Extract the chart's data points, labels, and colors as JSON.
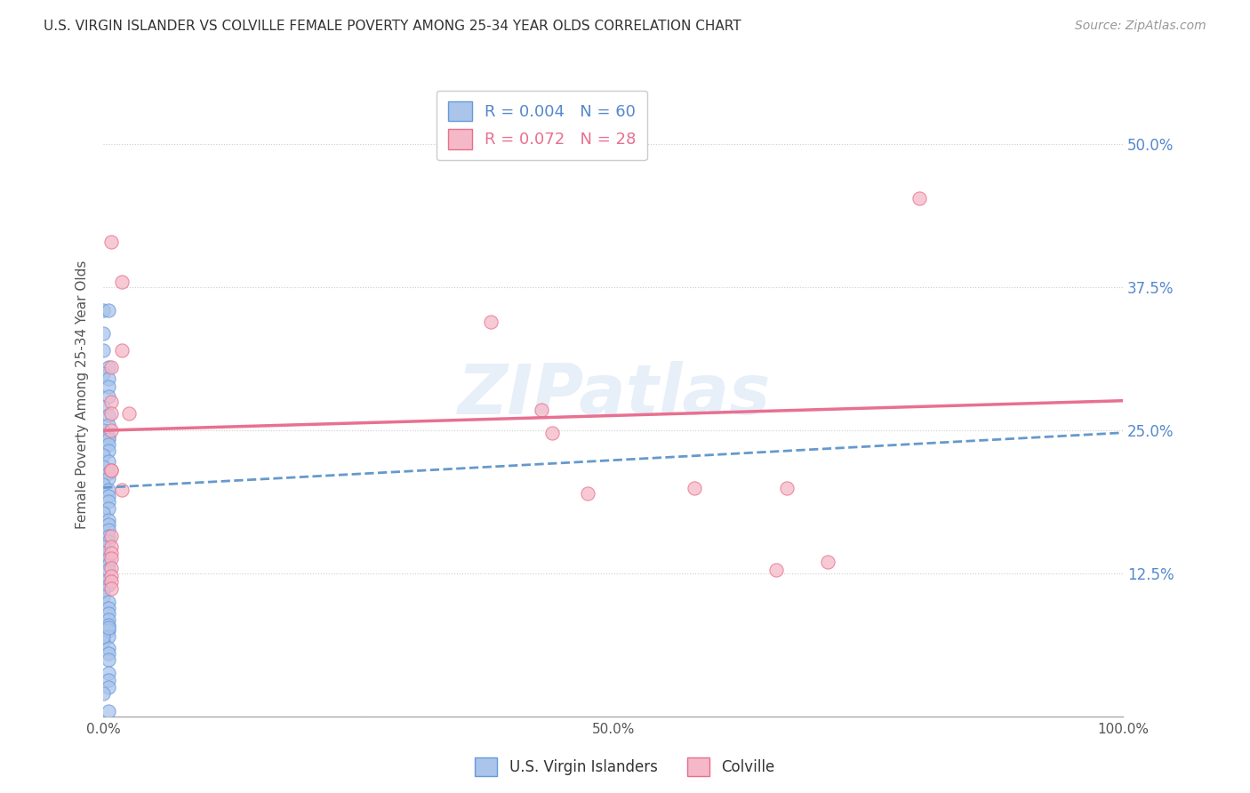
{
  "title": "U.S. VIRGIN ISLANDER VS COLVILLE FEMALE POVERTY AMONG 25-34 YEAR OLDS CORRELATION CHART",
  "source": "Source: ZipAtlas.com",
  "ylabel": "Female Poverty Among 25-34 Year Olds",
  "xlim": [
    0,
    1.0
  ],
  "ylim": [
    0,
    0.5625
  ],
  "xticks": [
    0.0,
    0.1,
    0.2,
    0.3,
    0.4,
    0.5,
    0.6,
    0.7,
    0.8,
    0.9,
    1.0
  ],
  "ytick_positions": [
    0.0,
    0.125,
    0.25,
    0.375,
    0.5
  ],
  "ytick_labels_right": [
    "",
    "12.5%",
    "25.0%",
    "37.5%",
    "50.0%"
  ],
  "blue_R": 0.004,
  "blue_N": 60,
  "pink_R": 0.072,
  "pink_N": 28,
  "blue_color": "#aac4ea",
  "pink_color": "#f5b8c8",
  "blue_edge_color": "#6699dd",
  "pink_edge_color": "#e8708a",
  "blue_line_color": "#6699cc",
  "pink_line_color": "#e87090",
  "watermark": "ZIPatlas",
  "background_color": "#ffffff",
  "grid_color": "#cccccc",
  "blue_scatter_x": [
    0.0,
    0.005,
    0.0,
    0.0,
    0.005,
    0.0,
    0.005,
    0.005,
    0.005,
    0.0,
    0.005,
    0.005,
    0.0,
    0.005,
    0.005,
    0.005,
    0.005,
    0.0,
    0.005,
    0.0,
    0.005,
    0.005,
    0.0,
    0.005,
    0.005,
    0.005,
    0.005,
    0.0,
    0.005,
    0.005,
    0.005,
    0.005,
    0.005,
    0.0,
    0.0,
    0.005,
    0.005,
    0.005,
    0.005,
    0.005,
    0.0,
    0.0,
    0.005,
    0.005,
    0.005,
    0.005,
    0.005,
    0.005,
    0.005,
    0.0,
    0.005,
    0.005,
    0.005,
    0.0,
    0.005,
    0.005,
    0.005,
    0.0,
    0.005,
    0.005
  ],
  "blue_scatter_y": [
    0.355,
    0.355,
    0.335,
    0.32,
    0.305,
    0.3,
    0.295,
    0.288,
    0.28,
    0.27,
    0.263,
    0.255,
    0.25,
    0.245,
    0.242,
    0.238,
    0.232,
    0.228,
    0.223,
    0.218,
    0.213,
    0.208,
    0.203,
    0.198,
    0.193,
    0.188,
    0.182,
    0.178,
    0.172,
    0.168,
    0.163,
    0.158,
    0.153,
    0.148,
    0.143,
    0.138,
    0.133,
    0.128,
    0.12,
    0.115,
    0.11,
    0.105,
    0.1,
    0.095,
    0.09,
    0.085,
    0.08,
    0.075,
    0.07,
    0.065,
    0.06,
    0.055,
    0.05,
    0.07,
    0.038,
    0.032,
    0.026,
    0.02,
    0.078,
    0.005
  ],
  "pink_scatter_x": [
    0.008,
    0.018,
    0.018,
    0.008,
    0.008,
    0.008,
    0.025,
    0.008,
    0.008,
    0.018,
    0.008,
    0.008,
    0.008,
    0.008,
    0.008,
    0.008,
    0.008,
    0.008,
    0.008,
    0.38,
    0.43,
    0.44,
    0.475,
    0.58,
    0.66,
    0.67,
    0.71,
    0.8
  ],
  "pink_scatter_y": [
    0.415,
    0.38,
    0.32,
    0.305,
    0.275,
    0.265,
    0.265,
    0.25,
    0.215,
    0.198,
    0.158,
    0.148,
    0.143,
    0.138,
    0.13,
    0.123,
    0.118,
    0.112,
    0.215,
    0.345,
    0.268,
    0.248,
    0.195,
    0.2,
    0.128,
    0.2,
    0.135,
    0.453
  ],
  "blue_trend_x": [
    0.0,
    1.0
  ],
  "blue_trend_y": [
    0.2,
    0.248
  ],
  "pink_trend_x": [
    0.0,
    1.0
  ],
  "pink_trend_y": [
    0.25,
    0.276
  ]
}
